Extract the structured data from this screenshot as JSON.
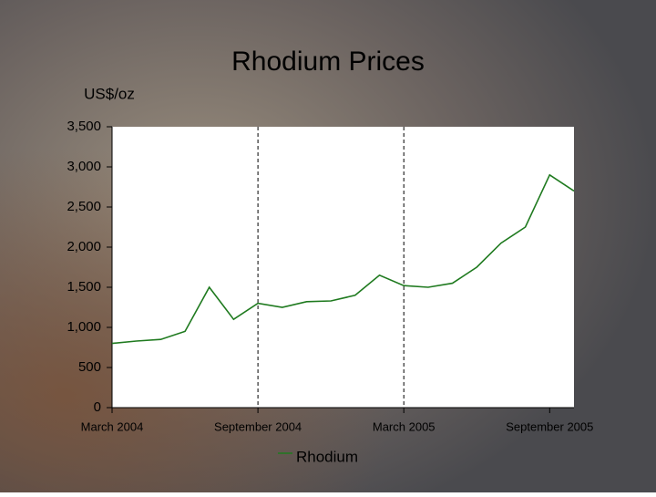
{
  "chart_data": {
    "type": "line",
    "title": "Rhodium Prices",
    "y_label": "US$/oz",
    "x": [
      "2004-03",
      "2004-04",
      "2004-05",
      "2004-06",
      "2004-07",
      "2004-08",
      "2004-09",
      "2004-10",
      "2004-11",
      "2004-12",
      "2005-01",
      "2005-02",
      "2005-03",
      "2005-04",
      "2005-05",
      "2005-06",
      "2005-07",
      "2005-08",
      "2005-09",
      "2005-10"
    ],
    "series": [
      {
        "name": "Rhodium",
        "color": "#1f7a1f",
        "values": [
          800,
          830,
          850,
          950,
          1500,
          1100,
          1300,
          1250,
          1320,
          1330,
          1400,
          1650,
          1520,
          1500,
          1550,
          1750,
          2050,
          2250,
          2900,
          2700
        ]
      }
    ],
    "xlim": [
      "2004-03",
      "2005-10"
    ],
    "xticks": [
      {
        "value": "2004-03",
        "label": "March 2004"
      },
      {
        "value": "2004-09",
        "label": "September 2004"
      },
      {
        "value": "2005-03",
        "label": "March 2005"
      },
      {
        "value": "2005-09",
        "label": "September 2005"
      }
    ],
    "ylim": [
      0,
      3500
    ],
    "yticks": [
      0,
      500,
      {
        "value": 1000,
        "label": "1,000"
      },
      {
        "value": 1500,
        "label": "1,500"
      },
      {
        "value": 2000,
        "label": "2,000"
      },
      {
        "value": 2500,
        "label": "2,500"
      },
      {
        "value": 3000,
        "label": "3,000"
      },
      {
        "value": 3500,
        "label": "3,500"
      }
    ],
    "x_grid": true,
    "legend": "bottom"
  }
}
